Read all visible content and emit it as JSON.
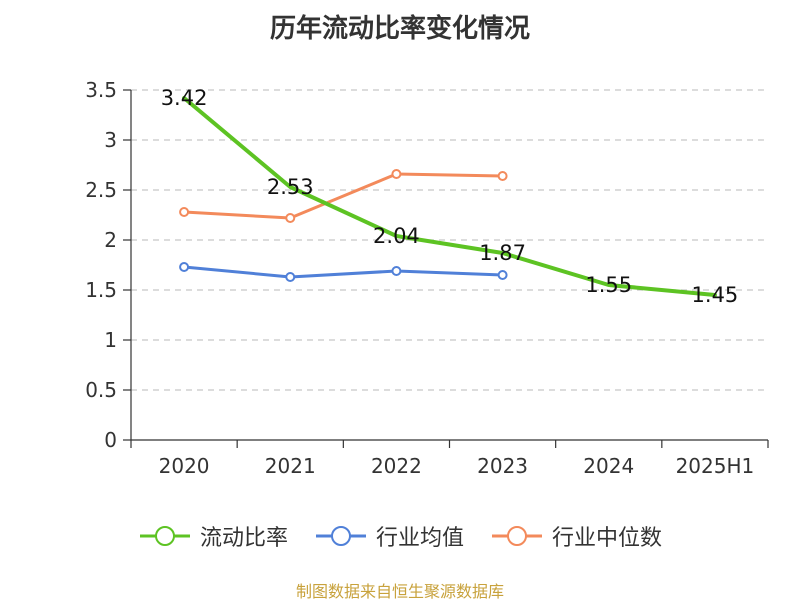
{
  "title": "历年流动比率变化情况",
  "source_note": "制图数据来自恒生聚源数据库",
  "chart_data": {
    "type": "line",
    "categories": [
      "2020",
      "2021",
      "2022",
      "2023",
      "2024",
      "2025H1"
    ],
    "ylim": [
      0,
      3.5
    ],
    "yticks": [
      0,
      0.5,
      1,
      1.5,
      2,
      2.5,
      3,
      3.5
    ],
    "ytick_labels": [
      "0",
      "0.5",
      "1",
      "1.5",
      "2",
      "2.5",
      "3",
      "3.5"
    ],
    "grid": true,
    "legend_position": "bottom",
    "series": [
      {
        "name": "流动比率",
        "color": "#5dc323",
        "values": [
          3.42,
          2.53,
          2.04,
          1.87,
          1.55,
          1.45
        ],
        "labels": [
          "3.42",
          "2.53",
          "2.04",
          "1.87",
          "1.55",
          "1.45"
        ]
      },
      {
        "name": "行业均值",
        "color": "#5080d8",
        "values": [
          1.73,
          1.63,
          1.69,
          1.65,
          null,
          null
        ]
      },
      {
        "name": "行业中位数",
        "color": "#f38a5b",
        "values": [
          2.28,
          2.22,
          2.66,
          2.64,
          null,
          null
        ]
      }
    ]
  }
}
